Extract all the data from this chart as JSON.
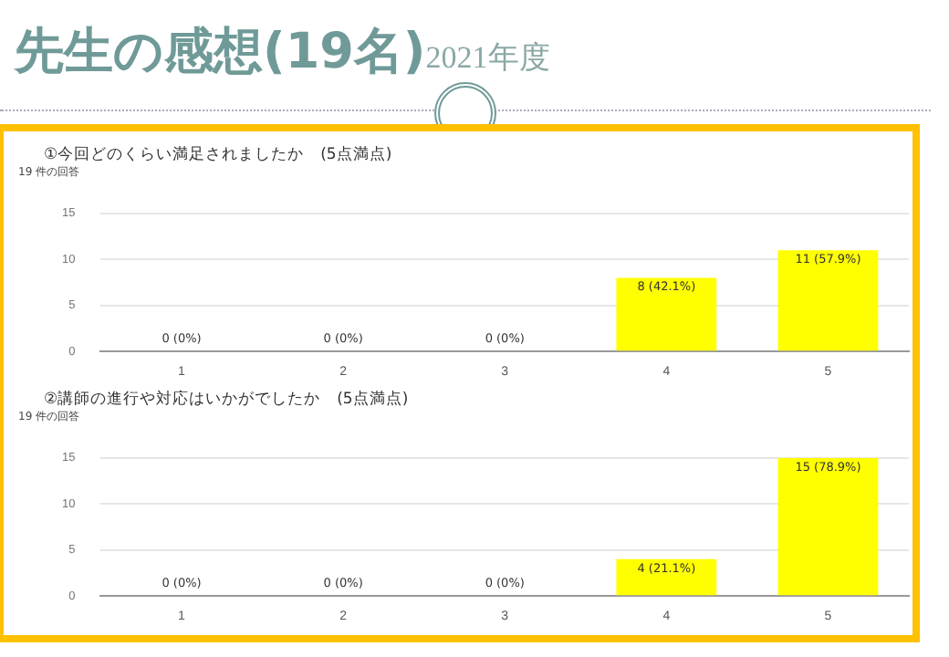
{
  "chart_data": [
    {
      "type": "bar",
      "title": "①今回どのくらい満足されましたか　(5点満点)",
      "subtitle": "19 件の回答",
      "annotations": [
        "先生の感想(19名)",
        "2021年度"
      ],
      "categories": [
        "1",
        "2",
        "3",
        "4",
        "5"
      ],
      "values": [
        0,
        0,
        0,
        8,
        11
      ],
      "color": "#ffff00",
      "value_labels": [
        "0 (0%)",
        "0 (0%)",
        "0 (0%)",
        "8 (42.1%)",
        "11 (57.9%)"
      ],
      "ylim": [
        0,
        15
      ],
      "yticks": [
        0,
        5,
        10,
        15
      ],
      "grid": "y",
      "legend": false
    },
    {
      "type": "bar",
      "title": "②講師の進行や対応はいかがでしたか　(5点満点)",
      "subtitle": "19 件の回答",
      "categories": [
        "1",
        "2",
        "3",
        "4",
        "5"
      ],
      "values": [
        0,
        0,
        0,
        4,
        15
      ],
      "color": "#ffff00",
      "value_labels": [
        "0 (0%)",
        "0 (0%)",
        "0 (0%)",
        "4 (21.1%)",
        "15 (78.9%)"
      ],
      "ylim": [
        0,
        15
      ],
      "yticks": [
        0,
        5,
        10,
        15
      ],
      "grid": "y",
      "legend": false
    }
  ]
}
